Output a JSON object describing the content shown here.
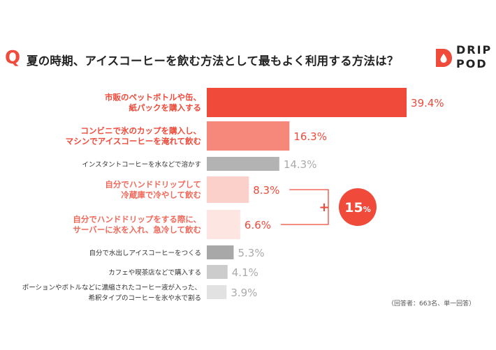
{
  "header": {
    "q_mark": "Q",
    "question": "夏の時期、アイスコーヒーを飲む方法として最もよく利用する方法は？"
  },
  "logo": {
    "line1": "DRIP",
    "line2": "POD",
    "accent": "#f04a3a"
  },
  "footnote": "（回答者：663名、単一回答）",
  "chart_data": {
    "type": "bar",
    "orientation": "horizontal",
    "categories": [
      [
        "市販のペットボトルや缶、",
        "紙パックを購入する"
      ],
      [
        "コンビニで氷のカップを購入し、",
        "マシンでアイスコーヒーを淹れて飲む"
      ],
      [
        "インスタントコーヒーを水などで溶かす"
      ],
      [
        "自分でハンドドリップして",
        "冷蔵庫で冷やして飲む"
      ],
      [
        "自分でハンドドリップをする際に、",
        "サーバーに氷を入れ、急冷して飲む"
      ],
      [
        "自分で水出しアイスコーヒーをつくる"
      ],
      [
        "カフェや喫茶店などで購入する"
      ],
      [
        "ポーションやボトルなどに濃縮されたコーヒー液が入った、",
        "希釈タイプのコーヒーを氷や水で割る"
      ]
    ],
    "values": [
      39.4,
      16.3,
      14.3,
      8.3,
      6.6,
      5.3,
      4.1,
      3.9
    ],
    "value_labels": [
      "39.4%",
      "16.3%",
      "14.3%",
      "8.3%",
      "6.6%",
      "5.3%",
      "4.1%",
      "3.9%"
    ],
    "bar_colors": [
      "#f04a3a",
      "#f6877b",
      "#b3b3b3",
      "#fcd0ca",
      "#fde6e2",
      "#a8a8a8",
      "#cccccc",
      "#e2e2e2"
    ],
    "label_colors": [
      "#f04a3a",
      "#f04a3a",
      "#333333",
      "#f06a5c",
      "#f06a5c",
      "#333333",
      "#333333",
      "#333333"
    ],
    "value_colors": [
      "#f04a3a",
      "#f04a3a",
      "#aaaaaa",
      "#f04a3a",
      "#f04a3a",
      "#aaaaaa",
      "#aaaaaa",
      "#aaaaaa"
    ],
    "annotation": {
      "plus": "+",
      "total_number": "15",
      "total_unit": "%",
      "color": "#f04a3a"
    }
  }
}
